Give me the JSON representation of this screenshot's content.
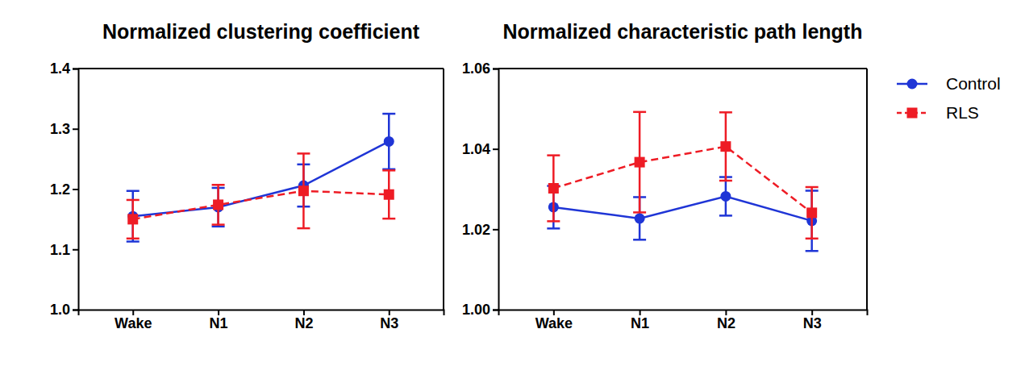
{
  "chart_data": [
    {
      "type": "line",
      "title": "Normalized clustering coefficient",
      "categories": [
        "Wake",
        "N1",
        "N2",
        "N3"
      ],
      "series": [
        {
          "name": "Control",
          "color": "#1f35d6",
          "marker": "circle",
          "line_style": "solid",
          "values": [
            1.155,
            1.17,
            1.206,
            1.279
          ],
          "errors": [
            0.042,
            0.032,
            0.035,
            0.046
          ]
        },
        {
          "name": "RLS",
          "color": "#ee1c25",
          "marker": "square",
          "line_style": "dashed",
          "values": [
            1.15,
            1.174,
            1.197,
            1.191
          ],
          "errors": [
            0.032,
            0.033,
            0.062,
            0.04
          ]
        }
      ],
      "ylim": [
        1.0,
        1.4
      ],
      "yticks": [
        {
          "value": 1.0,
          "label": "1.0"
        },
        1.1,
        1.2,
        1.3,
        1.4
      ]
    },
    {
      "type": "line",
      "title": "Normalized characteristic path length",
      "categories": [
        "Wake",
        "N1",
        "N2",
        "N3"
      ],
      "series": [
        {
          "name": "Control",
          "color": "#1f35d6",
          "marker": "circle",
          "line_style": "solid",
          "values": [
            1.0255,
            1.0227,
            1.0282,
            1.0221
          ],
          "errors": [
            0.0053,
            0.0053,
            0.0048,
            0.0075
          ]
        },
        {
          "name": "RLS",
          "color": "#ee1c25",
          "marker": "square",
          "line_style": "dashed",
          "values": [
            1.0302,
            1.0367,
            1.0406,
            1.0241
          ],
          "errors": [
            0.0082,
            0.0125,
            0.0085,
            0.0064
          ]
        }
      ],
      "ylim": [
        1.0,
        1.06
      ],
      "yticks": [
        {
          "value": 1.0,
          "label": "1.00"
        },
        1.02,
        1.04,
        1.06
      ],
      "legend": "right"
    }
  ]
}
